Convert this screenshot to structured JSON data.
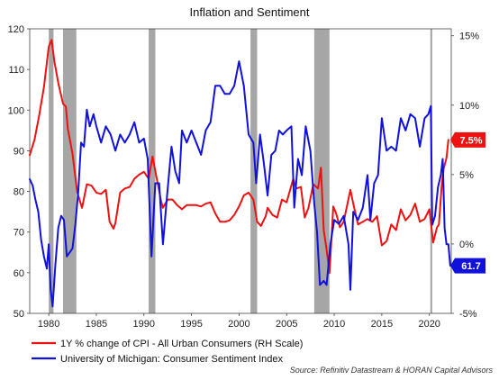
{
  "chart_data": {
    "type": "line",
    "title": "Inflation and Sentiment",
    "source": "Source: Refinitiv Datastream & HORAN Capital Advisors",
    "x_ticks": [
      "1980",
      "1985",
      "1990",
      "1995",
      "2000",
      "2005",
      "2010",
      "2015",
      "2020"
    ],
    "xlim": [
      1978.0,
      2022.3
    ],
    "y_left": {
      "ticks": [
        "50",
        "60",
        "70",
        "80",
        "90",
        "100",
        "110",
        "120"
      ],
      "ylim": [
        50,
        120
      ]
    },
    "y_right": {
      "ticks": [
        "-5%",
        "0%",
        "5%",
        "10%",
        "15%"
      ],
      "ylim": [
        -5,
        15.5
      ]
    },
    "grid": false,
    "legend_placement": "bottom-left",
    "recessions": [
      [
        1980.0,
        1980.5
      ],
      [
        1981.5,
        1982.9
      ],
      [
        1990.5,
        1991.2
      ],
      [
        2001.2,
        2001.9
      ],
      [
        2007.9,
        2009.5
      ],
      [
        2020.1,
        2020.3
      ]
    ],
    "series": [
      {
        "name": "1Y % change of CPI - All Urban Consumers (RH Scale)",
        "axis": "right",
        "color": "#ee1111",
        "end_label": "7.5%",
        "points": [
          [
            1978.0,
            6.4
          ],
          [
            1978.5,
            7.5
          ],
          [
            1979.0,
            9.3
          ],
          [
            1979.5,
            11.3
          ],
          [
            1980.0,
            14.2
          ],
          [
            1980.3,
            14.7
          ],
          [
            1980.6,
            13.1
          ],
          [
            1981.0,
            11.6
          ],
          [
            1981.5,
            10.1
          ],
          [
            1981.8,
            9.9
          ],
          [
            1982.0,
            8.3
          ],
          [
            1982.5,
            6.5
          ],
          [
            1983.0,
            3.7
          ],
          [
            1983.5,
            2.6
          ],
          [
            1984.0,
            4.3
          ],
          [
            1984.5,
            4.2
          ],
          [
            1985.0,
            3.7
          ],
          [
            1985.5,
            3.6
          ],
          [
            1986.0,
            3.9
          ],
          [
            1986.4,
            1.6
          ],
          [
            1986.8,
            1.1
          ],
          [
            1987.0,
            1.5
          ],
          [
            1987.5,
            3.7
          ],
          [
            1988.0,
            4.0
          ],
          [
            1988.5,
            4.1
          ],
          [
            1989.0,
            4.7
          ],
          [
            1989.5,
            5.0
          ],
          [
            1990.0,
            5.2
          ],
          [
            1990.5,
            4.7
          ],
          [
            1990.9,
            6.3
          ],
          [
            1991.3,
            4.9
          ],
          [
            1991.8,
            3.1
          ],
          [
            1992.0,
            2.6
          ],
          [
            1992.5,
            3.2
          ],
          [
            1993.0,
            3.2
          ],
          [
            1993.5,
            2.8
          ],
          [
            1994.0,
            2.5
          ],
          [
            1994.5,
            2.8
          ],
          [
            1995.0,
            2.8
          ],
          [
            1995.5,
            2.8
          ],
          [
            1996.0,
            2.7
          ],
          [
            1996.5,
            2.9
          ],
          [
            1997.0,
            3.0
          ],
          [
            1997.5,
            2.2
          ],
          [
            1998.0,
            1.6
          ],
          [
            1998.5,
            1.6
          ],
          [
            1999.0,
            1.7
          ],
          [
            1999.5,
            2.1
          ],
          [
            2000.0,
            2.7
          ],
          [
            2000.5,
            3.5
          ],
          [
            2001.0,
            3.7
          ],
          [
            2001.5,
            3.2
          ],
          [
            2001.9,
            1.6
          ],
          [
            2002.3,
            1.3
          ],
          [
            2002.8,
            2.0
          ],
          [
            2003.0,
            2.6
          ],
          [
            2003.5,
            2.1
          ],
          [
            2004.0,
            1.9
          ],
          [
            2004.5,
            3.2
          ],
          [
            2005.0,
            3.0
          ],
          [
            2005.7,
            4.7
          ],
          [
            2006.0,
            4.0
          ],
          [
            2006.5,
            4.1
          ],
          [
            2006.9,
            1.9
          ],
          [
            2007.3,
            2.6
          ],
          [
            2007.8,
            4.3
          ],
          [
            2008.3,
            4.0
          ],
          [
            2008.6,
            5.5
          ],
          [
            2008.9,
            1.0
          ],
          [
            2009.2,
            -0.4
          ],
          [
            2009.5,
            -2.1
          ],
          [
            2009.9,
            2.7
          ],
          [
            2010.2,
            2.2
          ],
          [
            2010.6,
            1.2
          ],
          [
            2011.0,
            1.6
          ],
          [
            2011.7,
            3.9
          ],
          [
            2012.0,
            2.9
          ],
          [
            2012.5,
            1.4
          ],
          [
            2013.0,
            1.6
          ],
          [
            2013.5,
            1.8
          ],
          [
            2014.0,
            1.6
          ],
          [
            2014.5,
            2.0
          ],
          [
            2015.0,
            -0.1
          ],
          [
            2015.5,
            0.2
          ],
          [
            2016.0,
            1.4
          ],
          [
            2016.5,
            1.0
          ],
          [
            2017.0,
            2.5
          ],
          [
            2017.5,
            1.7
          ],
          [
            2018.0,
            2.1
          ],
          [
            2018.5,
            2.9
          ],
          [
            2019.0,
            1.6
          ],
          [
            2019.5,
            1.8
          ],
          [
            2020.0,
            2.5
          ],
          [
            2020.4,
            0.1
          ],
          [
            2020.8,
            1.2
          ],
          [
            2021.0,
            1.4
          ],
          [
            2021.3,
            4.2
          ],
          [
            2021.5,
            5.4
          ],
          [
            2021.8,
            6.2
          ],
          [
            2022.0,
            7.5
          ]
        ]
      },
      {
        "name": "University of Michigan: Consumer Sentiment Index",
        "axis": "left",
        "color": "#1111dd",
        "end_label": "61.7",
        "points": [
          [
            1978.0,
            83.0
          ],
          [
            1978.3,
            81.5
          ],
          [
            1978.6,
            78.0
          ],
          [
            1978.9,
            75.0
          ],
          [
            1979.2,
            68.0
          ],
          [
            1979.5,
            64.0
          ],
          [
            1979.8,
            61.0
          ],
          [
            1980.0,
            67.0
          ],
          [
            1980.2,
            56.0
          ],
          [
            1980.4,
            51.7
          ],
          [
            1980.7,
            62.0
          ],
          [
            1981.0,
            71.0
          ],
          [
            1981.3,
            74.0
          ],
          [
            1981.6,
            73.0
          ],
          [
            1981.9,
            64.0
          ],
          [
            1982.2,
            65.0
          ],
          [
            1982.5,
            66.0
          ],
          [
            1982.8,
            72.0
          ],
          [
            1983.1,
            80.0
          ],
          [
            1983.4,
            92.0
          ],
          [
            1983.7,
            91.0
          ],
          [
            1984.0,
            100.1
          ],
          [
            1984.3,
            96.0
          ],
          [
            1984.7,
            99.0
          ],
          [
            1985.0,
            96.0
          ],
          [
            1985.5,
            92.0
          ],
          [
            1986.0,
            96.0
          ],
          [
            1986.5,
            94.0
          ],
          [
            1987.0,
            90.0
          ],
          [
            1987.5,
            94.0
          ],
          [
            1988.0,
            92.0
          ],
          [
            1988.5,
            94.0
          ],
          [
            1989.0,
            97.0
          ],
          [
            1989.5,
            92.0
          ],
          [
            1990.0,
            93.0
          ],
          [
            1990.4,
            88.0
          ],
          [
            1990.8,
            64.0
          ],
          [
            1991.2,
            82.0
          ],
          [
            1991.6,
            82.0
          ],
          [
            1992.0,
            67.0
          ],
          [
            1992.4,
            78.0
          ],
          [
            1992.9,
            91.0
          ],
          [
            1993.3,
            85.0
          ],
          [
            1993.7,
            82.0
          ],
          [
            1994.0,
            95.0
          ],
          [
            1994.5,
            92.0
          ],
          [
            1995.0,
            95.0
          ],
          [
            1995.5,
            92.0
          ],
          [
            1996.0,
            89.0
          ],
          [
            1996.5,
            95.0
          ],
          [
            1997.0,
            97.0
          ],
          [
            1997.5,
            106.0
          ],
          [
            1998.0,
            106.0
          ],
          [
            1998.5,
            104.0
          ],
          [
            1999.0,
            104.0
          ],
          [
            1999.5,
            106.0
          ],
          [
            2000.0,
            112.0
          ],
          [
            2000.5,
            106.0
          ],
          [
            2001.0,
            94.0
          ],
          [
            2001.5,
            92.0
          ],
          [
            2001.8,
            82.0
          ],
          [
            2002.2,
            94.0
          ],
          [
            2002.6,
            87.0
          ],
          [
            2003.0,
            79.0
          ],
          [
            2003.4,
            89.0
          ],
          [
            2003.8,
            90.0
          ],
          [
            2004.2,
            95.0
          ],
          [
            2004.6,
            94.0
          ],
          [
            2005.0,
            95.0
          ],
          [
            2005.5,
            96.0
          ],
          [
            2005.8,
            76.0
          ],
          [
            2006.2,
            88.0
          ],
          [
            2006.6,
            84.0
          ],
          [
            2007.0,
            96.0
          ],
          [
            2007.5,
            90.0
          ],
          [
            2007.9,
            77.0
          ],
          [
            2008.2,
            70.0
          ],
          [
            2008.5,
            57.0
          ],
          [
            2008.9,
            58.0
          ],
          [
            2009.2,
            57.0
          ],
          [
            2009.6,
            67.0
          ],
          [
            2010.0,
            73.0
          ],
          [
            2010.5,
            72.0
          ],
          [
            2011.0,
            74.0
          ],
          [
            2011.5,
            67.0
          ],
          [
            2011.7,
            55.8
          ],
          [
            2012.0,
            75.0
          ],
          [
            2012.5,
            73.0
          ],
          [
            2013.0,
            76.0
          ],
          [
            2013.5,
            84.0
          ],
          [
            2013.8,
            73.0
          ],
          [
            2014.2,
            82.0
          ],
          [
            2014.6,
            84.0
          ],
          [
            2015.0,
            98.0
          ],
          [
            2015.5,
            90.0
          ],
          [
            2016.0,
            91.0
          ],
          [
            2016.5,
            90.0
          ],
          [
            2017.0,
            98.0
          ],
          [
            2017.5,
            95.0
          ],
          [
            2018.0,
            99.0
          ],
          [
            2018.5,
            98.0
          ],
          [
            2019.0,
            91.0
          ],
          [
            2019.5,
            98.0
          ],
          [
            2019.9,
            99.0
          ],
          [
            2020.15,
            101.0
          ],
          [
            2020.3,
            71.8
          ],
          [
            2020.6,
            74.0
          ],
          [
            2020.9,
            81.0
          ],
          [
            2021.2,
            84.0
          ],
          [
            2021.4,
            88.0
          ],
          [
            2021.6,
            71.0
          ],
          [
            2021.8,
            67.0
          ],
          [
            2022.0,
            67.0
          ],
          [
            2022.2,
            61.7
          ]
        ]
      }
    ]
  }
}
